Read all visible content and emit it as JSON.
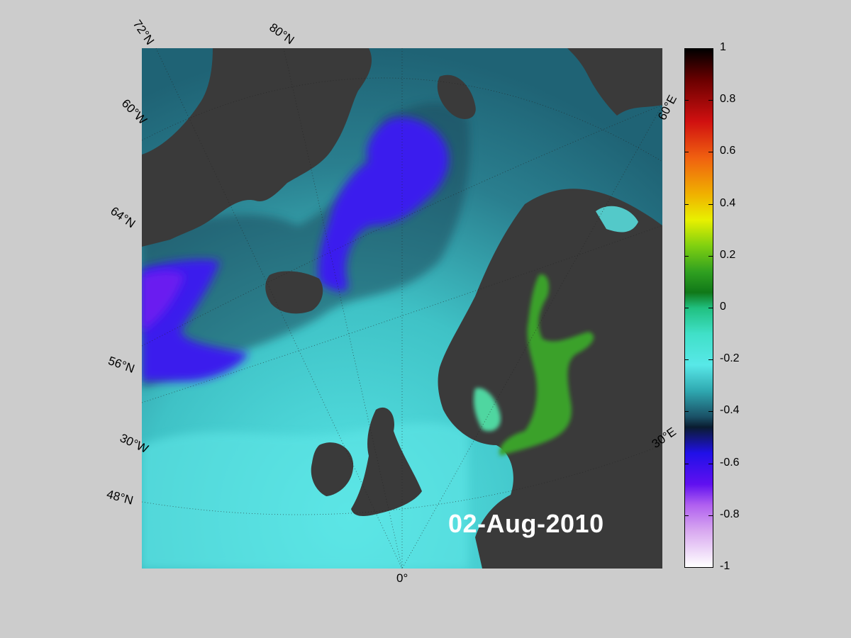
{
  "date_label": "02-Aug-2010",
  "grid_labels": {
    "lat_72": "72°N",
    "lat_80": "80°N",
    "lat_64": "64°N",
    "lat_56": "56°N",
    "lat_48": "48°N",
    "lon_60w": "60°W",
    "lon_30w": "30°W",
    "lon_0": "0°",
    "lon_30e": "30°E",
    "lon_60e": "60°E"
  },
  "colorbar": {
    "ticks": [
      "1",
      "0.8",
      "0.6",
      "0.4",
      "0.2",
      "0",
      "-0.2",
      "-0.4",
      "-0.6",
      "-0.8",
      "-1"
    ],
    "min": -1,
    "max": 1
  },
  "colors": {
    "background": "#cccccc",
    "land": "#3a3a3a",
    "ocean_dark": "#1e5a6e",
    "ocean_mid": "#2f8a95",
    "ocean_light": "#58e3e3",
    "anomaly_negative": "#3b1cf0",
    "baltic_positive": "#3aa12c"
  }
}
